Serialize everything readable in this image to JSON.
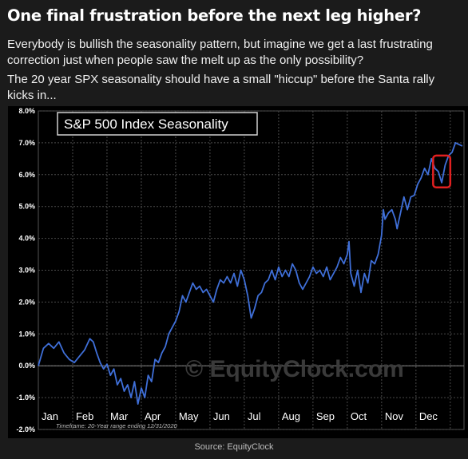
{
  "post": {
    "headline": "One final frustration before the next leg higher?",
    "paragraph1": "Everybody is bullish the seasonality pattern, but imagine we get a last frustrating correction just when people saw the melt up as the only possibility?",
    "paragraph2": "The 20 year SPX seasonality should have a small \"hiccup\" before the Santa rally kicks in...",
    "source": "Source: EquityClock"
  },
  "chart_data": {
    "type": "line",
    "title": "S&P 500 Index Seasonality",
    "watermark": "© EquityClock.com",
    "footnote": "Timeframe: 20-Year range ending 12/31/2020",
    "ylim": [
      -2.0,
      8.0
    ],
    "yticks": [
      "8.0%",
      "7.0%",
      "6.0%",
      "5.0%",
      "4.0%",
      "3.0%",
      "2.0%",
      "1.0%",
      "0.0%",
      "-1.0%",
      "-2.0%"
    ],
    "categories": [
      "Jan",
      "Feb",
      "Mar",
      "Apr",
      "May",
      "Jun",
      "Jul",
      "Aug",
      "Sep",
      "Oct",
      "Nov",
      "Dec"
    ],
    "xlim": [
      0,
      12
    ],
    "grid": true,
    "line_color": "#3f6fd8",
    "highlight_color": "#e02020",
    "highlight_box": {
      "x": [
        11.5,
        12.0
      ],
      "y": [
        5.6,
        6.6
      ]
    },
    "series": [
      {
        "values": [
          [
            0.0,
            0.0
          ],
          [
            0.15,
            0.55
          ],
          [
            0.3,
            0.7
          ],
          [
            0.45,
            0.55
          ],
          [
            0.6,
            0.75
          ],
          [
            0.75,
            0.4
          ],
          [
            0.9,
            0.2
          ],
          [
            1.05,
            0.1
          ],
          [
            1.2,
            0.3
          ],
          [
            1.35,
            0.5
          ],
          [
            1.5,
            0.85
          ],
          [
            1.6,
            0.75
          ],
          [
            1.7,
            0.4
          ],
          [
            1.8,
            0.1
          ],
          [
            1.9,
            -0.1
          ],
          [
            2.0,
            0.05
          ],
          [
            2.1,
            -0.3
          ],
          [
            2.2,
            -0.1
          ],
          [
            2.3,
            -0.6
          ],
          [
            2.4,
            -0.4
          ],
          [
            2.5,
            -0.8
          ],
          [
            2.6,
            -0.6
          ],
          [
            2.7,
            -1.0
          ],
          [
            2.8,
            -0.5
          ],
          [
            2.9,
            -1.2
          ],
          [
            3.0,
            -0.7
          ],
          [
            3.1,
            -1.0
          ],
          [
            3.2,
            -0.3
          ],
          [
            3.3,
            -0.5
          ],
          [
            3.4,
            0.2
          ],
          [
            3.5,
            0.1
          ],
          [
            3.6,
            0.4
          ],
          [
            3.7,
            0.6
          ],
          [
            3.8,
            1.0
          ],
          [
            3.9,
            1.2
          ],
          [
            4.0,
            1.4
          ],
          [
            4.1,
            1.7
          ],
          [
            4.2,
            2.2
          ],
          [
            4.3,
            2.0
          ],
          [
            4.4,
            2.3
          ],
          [
            4.5,
            2.6
          ],
          [
            4.6,
            2.4
          ],
          [
            4.7,
            2.5
          ],
          [
            4.8,
            2.3
          ],
          [
            4.9,
            2.4
          ],
          [
            5.0,
            2.2
          ],
          [
            5.1,
            2.0
          ],
          [
            5.2,
            2.4
          ],
          [
            5.3,
            2.7
          ],
          [
            5.4,
            2.6
          ],
          [
            5.5,
            2.8
          ],
          [
            5.6,
            2.6
          ],
          [
            5.7,
            2.9
          ],
          [
            5.8,
            2.5
          ],
          [
            5.9,
            3.0
          ],
          [
            6.0,
            2.7
          ],
          [
            6.1,
            2.2
          ],
          [
            6.2,
            1.5
          ],
          [
            6.3,
            1.8
          ],
          [
            6.4,
            2.2
          ],
          [
            6.5,
            2.3
          ],
          [
            6.6,
            2.6
          ],
          [
            6.7,
            2.7
          ],
          [
            6.8,
            3.0
          ],
          [
            6.9,
            2.7
          ],
          [
            7.0,
            3.1
          ],
          [
            7.1,
            2.8
          ],
          [
            7.2,
            3.0
          ],
          [
            7.3,
            2.8
          ],
          [
            7.4,
            3.2
          ],
          [
            7.5,
            3.0
          ],
          [
            7.6,
            2.6
          ],
          [
            7.7,
            2.4
          ],
          [
            7.8,
            2.6
          ],
          [
            7.9,
            2.8
          ],
          [
            8.0,
            3.1
          ],
          [
            8.1,
            2.9
          ],
          [
            8.2,
            3.0
          ],
          [
            8.3,
            2.8
          ],
          [
            8.4,
            3.1
          ],
          [
            8.5,
            2.7
          ],
          [
            8.6,
            2.9
          ],
          [
            8.7,
            3.1
          ],
          [
            8.8,
            3.4
          ],
          [
            8.9,
            3.2
          ],
          [
            9.0,
            3.5
          ],
          [
            9.05,
            3.9
          ],
          [
            9.1,
            2.9
          ],
          [
            9.2,
            2.5
          ],
          [
            9.3,
            3.0
          ],
          [
            9.4,
            2.3
          ],
          [
            9.5,
            2.9
          ],
          [
            9.6,
            2.6
          ],
          [
            9.7,
            3.3
          ],
          [
            9.8,
            3.2
          ],
          [
            9.9,
            3.5
          ],
          [
            10.0,
            4.1
          ],
          [
            10.05,
            4.9
          ],
          [
            10.1,
            4.6
          ],
          [
            10.2,
            4.8
          ],
          [
            10.3,
            4.9
          ],
          [
            10.4,
            4.6
          ],
          [
            10.45,
            4.3
          ],
          [
            10.55,
            4.8
          ],
          [
            10.65,
            5.3
          ],
          [
            10.75,
            4.9
          ],
          [
            10.85,
            5.3
          ],
          [
            10.95,
            5.35
          ],
          [
            11.05,
            5.7
          ],
          [
            11.15,
            5.9
          ],
          [
            11.25,
            6.2
          ],
          [
            11.35,
            6.0
          ],
          [
            11.45,
            6.5
          ],
          [
            11.55,
            6.2
          ],
          [
            11.65,
            6.1
          ],
          [
            11.75,
            5.75
          ],
          [
            11.85,
            6.3
          ],
          [
            11.95,
            6.6
          ],
          [
            12.05,
            6.7
          ],
          [
            12.15,
            7.0
          ],
          [
            12.25,
            6.95
          ],
          [
            12.35,
            6.9
          ]
        ]
      }
    ]
  }
}
